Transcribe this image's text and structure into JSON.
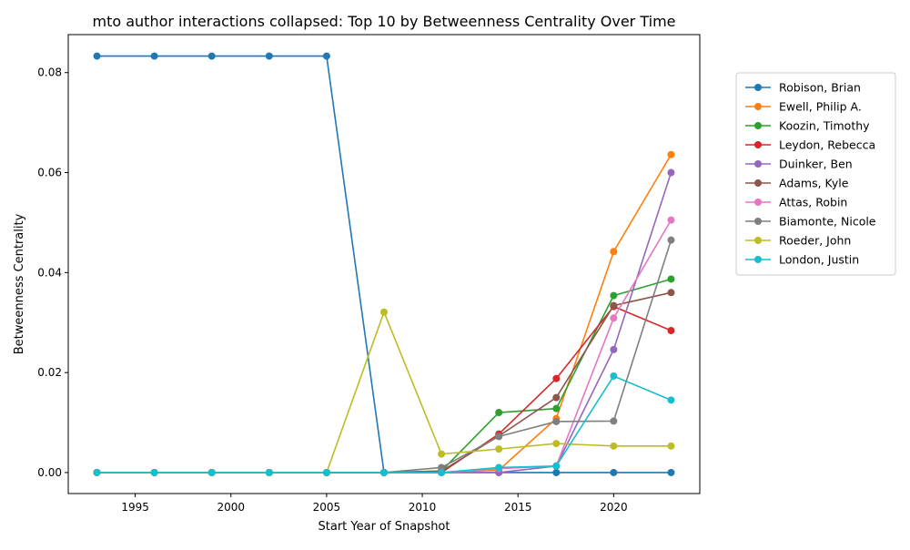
{
  "chart_data": {
    "type": "line",
    "title": "mto author interactions collapsed: Top 10 by Betweenness Centrality Over Time",
    "xlabel": "Start Year of Snapshot",
    "ylabel": "Betweenness Centrality",
    "x": [
      1993,
      1996,
      1999,
      2002,
      2005,
      2008,
      2011,
      2014,
      2017,
      2020,
      2023
    ],
    "xlim": [
      1991.5,
      2024.5
    ],
    "ylim": [
      -0.0042,
      0.0876
    ],
    "xticks": [
      1995,
      2000,
      2005,
      2010,
      2015,
      2020
    ],
    "yticks": [
      0.0,
      0.02,
      0.04,
      0.06,
      0.08
    ],
    "ytick_labels": [
      "0.00",
      "0.02",
      "0.04",
      "0.06",
      "0.08"
    ],
    "grid": false,
    "legend_position": "outside-right",
    "series": [
      {
        "name": "Robison, Brian",
        "color": "#1f77b4",
        "values": [
          0.0833,
          0.0833,
          0.0833,
          0.0833,
          0.0833,
          0,
          0,
          0,
          0,
          0,
          0
        ]
      },
      {
        "name": "Ewell, Philip A.",
        "color": "#ff7f0e",
        "values": [
          0,
          0,
          0,
          0,
          0,
          0,
          0,
          0.0005,
          0.0108,
          0.0442,
          0.0636
        ]
      },
      {
        "name": "Koozin, Timothy",
        "color": "#2ca02c",
        "values": [
          0,
          0,
          0,
          0,
          0,
          0,
          0.0003,
          0.012,
          0.0128,
          0.0354,
          0.0387
        ]
      },
      {
        "name": "Leydon, Rebecca",
        "color": "#d62728",
        "values": [
          0,
          0,
          0,
          0,
          0,
          0,
          0,
          0.0077,
          0.0188,
          0.0332,
          0.0284
        ]
      },
      {
        "name": "Duinker, Ben",
        "color": "#9467bd",
        "values": [
          0,
          0,
          0,
          0,
          0,
          0,
          0,
          0,
          0.0013,
          0.0246,
          0.06
        ]
      },
      {
        "name": "Adams, Kyle",
        "color": "#8c564b",
        "values": [
          0,
          0,
          0,
          0,
          0,
          0,
          0.0003,
          0.0073,
          0.015,
          0.0334,
          0.036
        ]
      },
      {
        "name": "Attas, Robin",
        "color": "#e377c2",
        "values": [
          0,
          0,
          0,
          0,
          0,
          0,
          0,
          0.0008,
          0.0013,
          0.0309,
          0.0505
        ]
      },
      {
        "name": "Biamonte, Nicole",
        "color": "#7f7f7f",
        "values": [
          0,
          0,
          0,
          0,
          0,
          0,
          0.001,
          0.0072,
          0.0102,
          0.0103,
          0.0465
        ]
      },
      {
        "name": "Roeder, John",
        "color": "#bcbd22",
        "values": [
          0,
          0,
          0,
          0,
          0,
          0.0321,
          0.0037,
          0.0047,
          0.0058,
          0.0053,
          0.0053
        ]
      },
      {
        "name": "London, Justin",
        "color": "#17becf",
        "values": [
          0,
          0,
          0,
          0,
          0,
          0,
          0,
          0.001,
          0.0013,
          0.0193,
          0.0145
        ]
      }
    ]
  }
}
